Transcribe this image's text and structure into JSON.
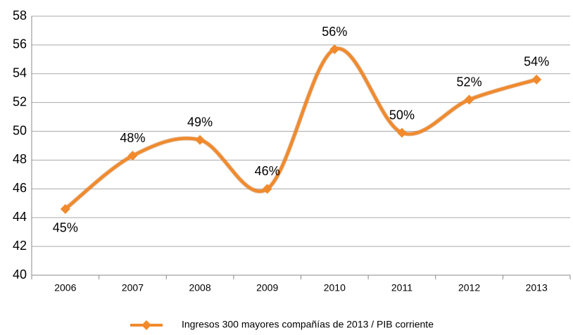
{
  "chart_data": {
    "type": "line",
    "categories": [
      "2006",
      "2007",
      "2008",
      "2009",
      "2010",
      "2011",
      "2012",
      "2013"
    ],
    "series": [
      {
        "name": "Ingresos 300 mayores compañías de 2013 / PIB corriente",
        "color": "#f08a2c",
        "values": [
          44.6,
          48.3,
          49.4,
          46.0,
          55.7,
          49.9,
          52.2,
          53.6
        ],
        "value_labels": [
          "45%",
          "48%",
          "49%",
          "46%",
          "56%",
          "50%",
          "52%",
          "54%"
        ]
      }
    ],
    "ylim": [
      40,
      58
    ],
    "yticks": [
      40,
      42,
      44,
      46,
      48,
      50,
      52,
      54,
      56,
      58
    ],
    "grid": true,
    "smooth": true,
    "legend": "bottom"
  }
}
